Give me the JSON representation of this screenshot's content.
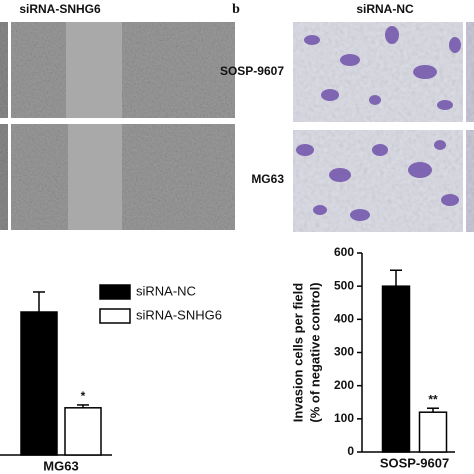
{
  "figure": {
    "left_panel_title": "siRNA-SNHG6",
    "panel_letter": "b",
    "right_panel_title": "siRNA-NC",
    "row_labels": [
      "SOSP-9607",
      "MG63"
    ]
  },
  "chart_data": [
    {
      "type": "bar",
      "categories": [
        "MG63"
      ],
      "series": [
        {
          "name": "siRNA-NC",
          "color": "#000000",
          "values": [
            1.0
          ],
          "errors": [
            0.14
          ]
        },
        {
          "name": "siRNA-SNHG6",
          "color": "#ffffff",
          "values": [
            0.33
          ],
          "errors": [
            0.02
          ]
        }
      ],
      "annotations": [
        "*"
      ],
      "ylim": [
        0,
        1.2
      ],
      "legend": "upper right"
    },
    {
      "type": "bar",
      "categories": [
        "SOSP-9607"
      ],
      "ylabel": [
        "Invasion cells per field",
        "(% of negative control)"
      ],
      "series": [
        {
          "color": "#000000",
          "values": [
            500
          ],
          "errors": [
            48
          ]
        },
        {
          "color": "#ffffff",
          "values": [
            120
          ],
          "errors": [
            12
          ]
        }
      ],
      "annotations": [
        "**"
      ],
      "ylim": [
        0,
        600
      ],
      "yticks": [
        0,
        100,
        200,
        300,
        400,
        500,
        600
      ]
    }
  ]
}
